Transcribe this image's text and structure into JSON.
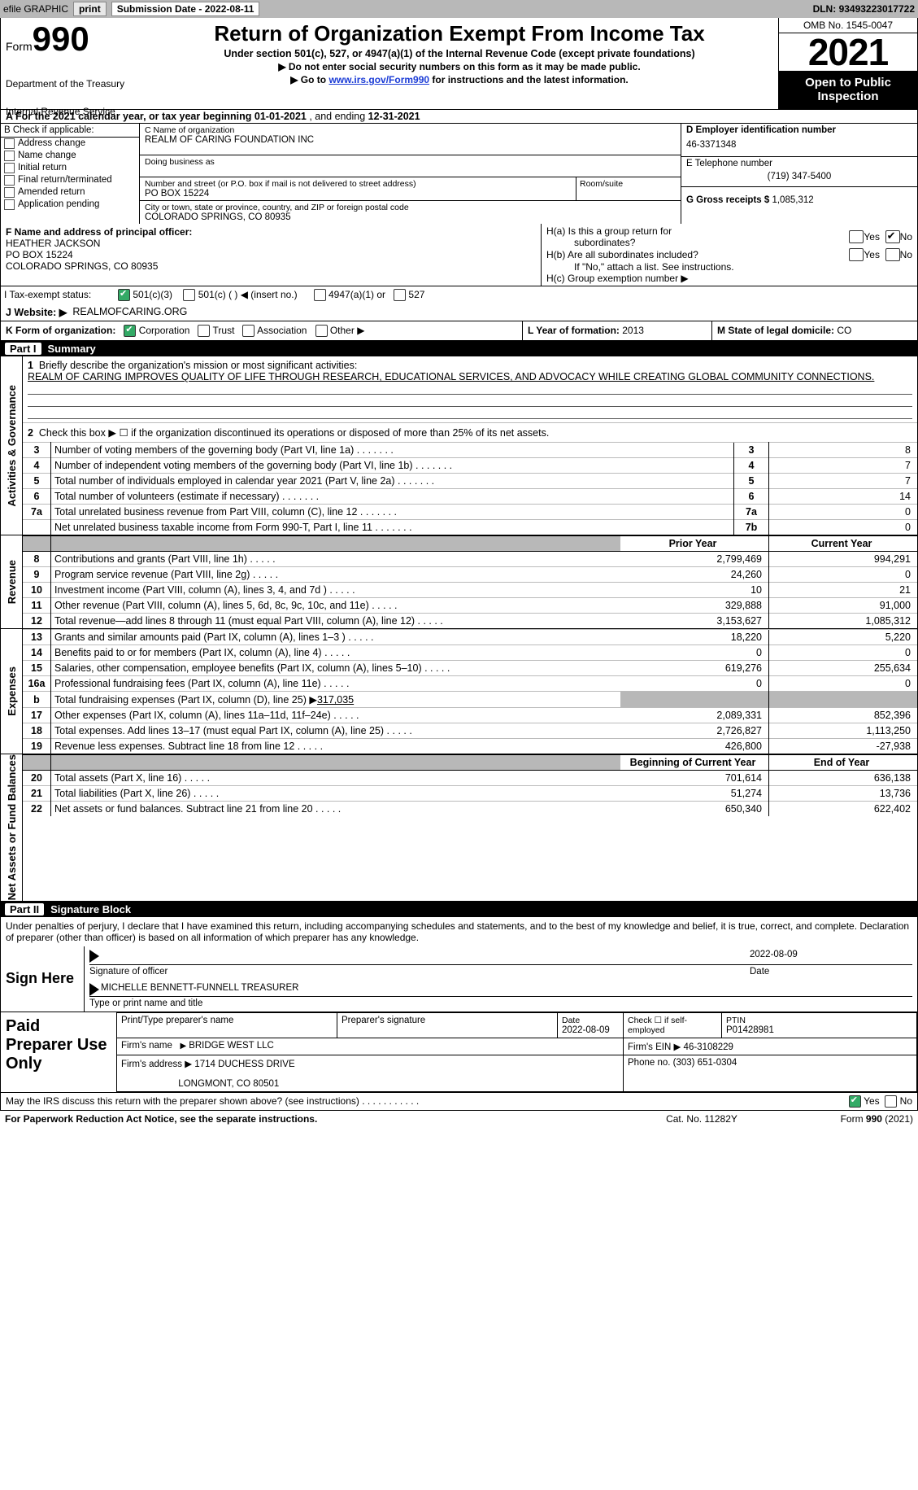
{
  "top": {
    "efile": "efile GRAPHIC",
    "print": "print",
    "sub_label": "Submission Date - ",
    "sub_date": "2022-08-11",
    "dln_label": "DLN: ",
    "dln": "93493223017722"
  },
  "header": {
    "form_word": "Form",
    "form_num": "990",
    "dept": "Department of the Treasury",
    "agency": "Internal Revenue Service",
    "title": "Return of Organization Exempt From Income Tax",
    "sub1": "Under section 501(c), 527, or 4947(a)(1) of the Internal Revenue Code (except private foundations)",
    "sub2": "▶ Do not enter social security numbers on this form as it may be made public.",
    "sub3a": "▶ Go to ",
    "sub3_link": "www.irs.gov/Form990",
    "sub3b": " for instructions and the latest information.",
    "omb": "OMB No. 1545-0047",
    "year": "2021",
    "open": "Open to Public Inspection"
  },
  "line_a": {
    "prefix": "A For the 2021 calendar year, or tax year beginning ",
    "begin": "01-01-2021",
    "mid": "   , and ending ",
    "end": "12-31-2021"
  },
  "sec_b": {
    "label": "B Check if applicable:",
    "opts": [
      "Address change",
      "Name change",
      "Initial return",
      "Final return/terminated",
      "Amended return",
      "Application pending"
    ]
  },
  "sec_c": {
    "c_label": "C Name of organization",
    "org": "REALM OF CARING FOUNDATION INC",
    "dba_label": "Doing business as",
    "addr_label": "Number and street (or P.O. box if mail is not delivered to street address)",
    "room_label": "Room/suite",
    "addr": "PO BOX 15224",
    "city_label": "City or town, state or province, country, and ZIP or foreign postal code",
    "city": "COLORADO SPRINGS, CO  80935"
  },
  "sec_d": {
    "d_label": "D Employer identification number",
    "ein": "46-3371348",
    "e_label": "E Telephone number",
    "phone": "(719) 347-5400",
    "g_label": "G Gross receipts $ ",
    "g_val": "1,085,312"
  },
  "sec_f": {
    "f_label": "F Name and address of principal officer:",
    "name": "HEATHER JACKSON",
    "addr": "PO BOX 15224",
    "city": "COLORADO SPRINGS, CO  80935"
  },
  "sec_h": {
    "ha1": "H(a)  Is this a group return for",
    "ha2": "subordinates?",
    "hb": "H(b)  Are all subordinates included?",
    "hb2": "If \"No,\" attach a list. See instructions.",
    "hc": "H(c)  Group exemption number ▶",
    "yes": "Yes",
    "no": "No"
  },
  "row_tax": {
    "i": "I   Tax-exempt status:",
    "i1": "501(c)(3)",
    "i2": "501(c) (   ) ◀ (insert no.)",
    "i3": "4947(a)(1) or",
    "i4": "527"
  },
  "row_j": {
    "label": "J   Website: ▶",
    "val": "REALMOFCARING.ORG"
  },
  "row_k": {
    "k": "K Form of organization:",
    "k_opts": [
      "Corporation",
      "Trust",
      "Association",
      "Other ▶"
    ],
    "l_label": "L Year of formation: ",
    "l_val": "2013",
    "m_label": "M State of legal domicile: ",
    "m_val": "CO"
  },
  "parts": {
    "p1": {
      "pill": "Part I",
      "title": "Summary"
    },
    "p2": {
      "pill": "Part II",
      "title": "Signature Block"
    }
  },
  "vtabs": {
    "ag": "Activities & Governance",
    "rev": "Revenue",
    "exp": "Expenses",
    "na": "Net Assets or Fund Balances"
  },
  "summary": {
    "l1_label": "Briefly describe the organization's mission or most significant activities:",
    "l1_text": "REALM OF CARING IMPROVES QUALITY OF LIFE THROUGH RESEARCH, EDUCATIONAL SERVICES, AND ADVOCACY WHILE CREATING GLOBAL COMMUNITY CONNECTIONS.",
    "l2": "Check this box ▶ ☐  if the organization discontinued its operations or disposed of more than 25% of its net assets.",
    "rows_ag": [
      {
        "n": "3",
        "d": "Number of voting members of the governing body (Part VI, line 1a)",
        "box": "3",
        "v": "8"
      },
      {
        "n": "4",
        "d": "Number of independent voting members of the governing body (Part VI, line 1b)",
        "box": "4",
        "v": "7"
      },
      {
        "n": "5",
        "d": "Total number of individuals employed in calendar year 2021 (Part V, line 2a)",
        "box": "5",
        "v": "7"
      },
      {
        "n": "6",
        "d": "Total number of volunteers (estimate if necessary)",
        "box": "6",
        "v": "14"
      },
      {
        "n": "7a",
        "d": "Total unrelated business revenue from Part VIII, column (C), line 12",
        "box": "7a",
        "v": "0"
      },
      {
        "n": "",
        "d": "Net unrelated business taxable income from Form 990-T, Part I, line 11",
        "box": "7b",
        "v": "0"
      }
    ],
    "col_prior": "Prior Year",
    "col_curr": "Current Year",
    "rows_rev": [
      {
        "n": "8",
        "d": "Contributions and grants (Part VIII, line 1h)",
        "p": "2,799,469",
        "c": "994,291"
      },
      {
        "n": "9",
        "d": "Program service revenue (Part VIII, line 2g)",
        "p": "24,260",
        "c": "0"
      },
      {
        "n": "10",
        "d": "Investment income (Part VIII, column (A), lines 3, 4, and 7d )",
        "p": "10",
        "c": "21"
      },
      {
        "n": "11",
        "d": "Other revenue (Part VIII, column (A), lines 5, 6d, 8c, 9c, 10c, and 11e)",
        "p": "329,888",
        "c": "91,000"
      },
      {
        "n": "12",
        "d": "Total revenue—add lines 8 through 11 (must equal Part VIII, column (A), line 12)",
        "p": "3,153,627",
        "c": "1,085,312"
      }
    ],
    "rows_exp": [
      {
        "n": "13",
        "d": "Grants and similar amounts paid (Part IX, column (A), lines 1–3 )",
        "p": "18,220",
        "c": "5,220"
      },
      {
        "n": "14",
        "d": "Benefits paid to or for members (Part IX, column (A), line 4)",
        "p": "0",
        "c": "0"
      },
      {
        "n": "15",
        "d": "Salaries, other compensation, employee benefits (Part IX, column (A), lines 5–10)",
        "p": "619,276",
        "c": "255,634"
      },
      {
        "n": "16a",
        "d": "Professional fundraising fees (Part IX, column (A), line 11e)",
        "p": "0",
        "c": "0"
      }
    ],
    "l16b_a": "Total fundraising expenses (Part IX, column (D), line 25) ▶",
    "l16b_v": "317,035",
    "rows_exp2": [
      {
        "n": "17",
        "d": "Other expenses (Part IX, column (A), lines 11a–11d, 11f–24e)",
        "p": "2,089,331",
        "c": "852,396"
      },
      {
        "n": "18",
        "d": "Total expenses. Add lines 13–17 (must equal Part IX, column (A), line 25)",
        "p": "2,726,827",
        "c": "1,113,250"
      },
      {
        "n": "19",
        "d": "Revenue less expenses. Subtract line 18 from line 12",
        "p": "426,800",
        "c": "-27,938"
      }
    ],
    "col_boy": "Beginning of Current Year",
    "col_eoy": "End of Year",
    "rows_na": [
      {
        "n": "20",
        "d": "Total assets (Part X, line 16)",
        "p": "701,614",
        "c": "636,138"
      },
      {
        "n": "21",
        "d": "Total liabilities (Part X, line 26)",
        "p": "51,274",
        "c": "13,736"
      },
      {
        "n": "22",
        "d": "Net assets or fund balances. Subtract line 21 from line 20",
        "p": "650,340",
        "c": "622,402"
      }
    ]
  },
  "sig": {
    "decl": "Under penalties of perjury, I declare that I have examined this return, including accompanying schedules and statements, and to the best of my knowledge and belief, it is true, correct, and complete. Declaration of preparer (other than officer) is based on all information of which preparer has any knowledge.",
    "sign_here": "Sign Here",
    "sig_officer": "Signature of officer",
    "date": "Date",
    "date_val": "2022-08-09",
    "name": "MICHELLE BENNETT-FUNNELL  TREASURER",
    "name_lbl": "Type or print name and title"
  },
  "ppu": {
    "title": "Paid Preparer Use Only",
    "r1": {
      "a": "Print/Type preparer's name",
      "b": "Preparer's signature",
      "c": "Date",
      "c_v": "2022-08-09",
      "d": "Check ☐  if self-employed",
      "e": "PTIN",
      "e_v": "P01428981"
    },
    "r2": {
      "a": "Firm's name",
      "a_v": "BRIDGE WEST LLC",
      "b": "Firm's EIN ▶",
      "b_v": "46-3108229"
    },
    "r3": {
      "a": "Firm's address ▶",
      "a_v": "1714 DUCHESS DRIVE",
      "a_v2": "LONGMONT, CO  80501",
      "b": "Phone no. ",
      "b_v": "(303) 651-0304"
    }
  },
  "discuss": {
    "q": "May the IRS discuss this return with the preparer shown above? (see instructions)",
    "yes": "Yes",
    "no": "No"
  },
  "foot": {
    "a": "For Paperwork Reduction Act Notice, see the separate instructions.",
    "b": "Cat. No. 11282Y",
    "c": "Form 990 (2021)"
  }
}
